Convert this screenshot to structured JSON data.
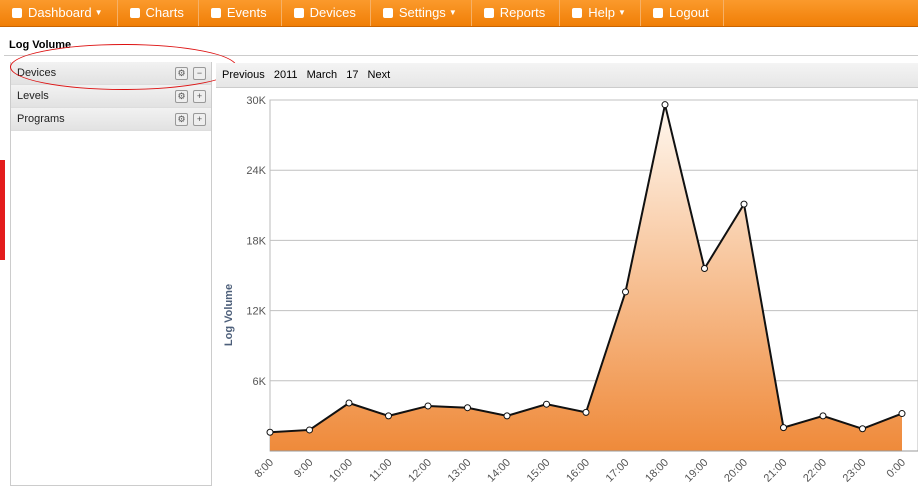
{
  "nav": [
    "Dashboard",
    "Charts",
    "Events",
    "Devices",
    "Settings",
    "Reports",
    "Help",
    "Logout"
  ],
  "panel": {
    "title": "Log Volume",
    "sections": [
      "Devices",
      "Levels",
      "Programs"
    ]
  },
  "date_nav": {
    "previous": "Previous",
    "year": "2011",
    "month": "March",
    "day": "17",
    "next": "Next"
  },
  "chart_data": {
    "type": "area",
    "y_label": "Log Volume",
    "categories": [
      "8:00",
      "9:00",
      "10:00",
      "11:00",
      "12:00",
      "13:00",
      "14:00",
      "15:00",
      "16:00",
      "17:00",
      "18:00",
      "19:00",
      "20:00",
      "21:00",
      "22:00",
      "23:00",
      "0:00"
    ],
    "values": [
      1600,
      1800,
      4100,
      3000,
      3850,
      3700,
      3000,
      4000,
      3300,
      13600,
      29600,
      15600,
      21100,
      2000,
      3000,
      1900,
      3200
    ],
    "color": "#ef8a3a",
    "ylim": [
      0,
      30000
    ],
    "yticks": [
      {
        "value": 6000,
        "label": "6K"
      },
      {
        "value": 12000,
        "label": "12K"
      },
      {
        "value": 18000,
        "label": "18K"
      },
      {
        "value": 24000,
        "label": "24K"
      },
      {
        "value": 30000,
        "label": "30K"
      }
    ],
    "grid": true
  }
}
